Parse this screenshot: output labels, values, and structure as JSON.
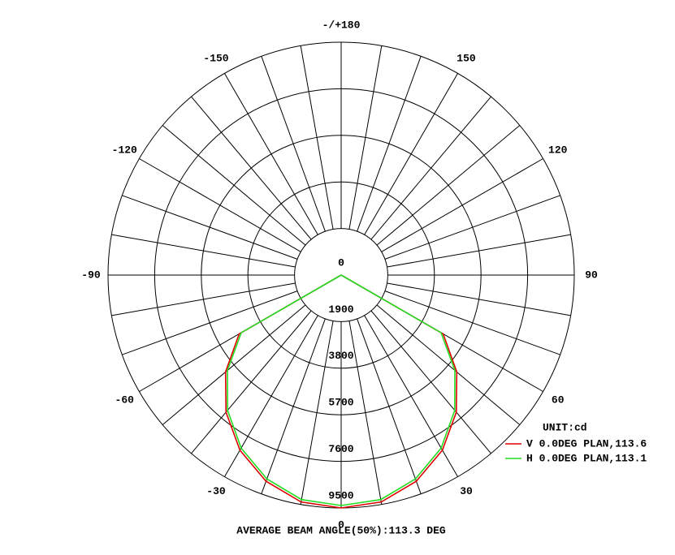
{
  "chart_data": {
    "type": "polar",
    "angles": [
      -90,
      -60,
      -50,
      -40,
      -30,
      -20,
      -10,
      0,
      10,
      20,
      30,
      40,
      50,
      60,
      90
    ],
    "series": [
      {
        "name": "V 0.0DEG PLAN,113.6",
        "color": "#e00000",
        "values": [
          0,
          4800,
          6150,
          7300,
          8250,
          8950,
          9400,
          9500,
          9400,
          8950,
          8250,
          7300,
          6150,
          4800,
          0
        ]
      },
      {
        "name": "H 0.0DEG PLAN,113.1",
        "color": "#22dd22",
        "values": [
          0,
          4700,
          6050,
          7200,
          8150,
          8850,
          9300,
          9400,
          9300,
          8850,
          8150,
          7200,
          6050,
          4700,
          0
        ]
      }
    ],
    "rlim": [
      0,
      9500
    ],
    "rticks": [
      0,
      1900,
      3800,
      5700,
      7600,
      9500
    ],
    "angle_ticks": [
      0,
      30,
      60,
      90,
      120,
      150,
      {
        "value": 180,
        "label": "-/+180"
      },
      -150,
      -120,
      -90,
      -60,
      -30
    ],
    "angle_grid": [
      0,
      10,
      20,
      30,
      40,
      50,
      60,
      70,
      80,
      90,
      100,
      110,
      120,
      130,
      140,
      150,
      160,
      170,
      180,
      -170,
      -160,
      -150,
      -140,
      -130,
      -120,
      -110,
      -100,
      -90,
      -80,
      -70,
      -60,
      -50,
      -40,
      -30,
      -20,
      -10
    ],
    "unit_label": "UNIT:cd",
    "footer": "AVERAGE BEAM ANGLE(50%):113.3 DEG"
  }
}
